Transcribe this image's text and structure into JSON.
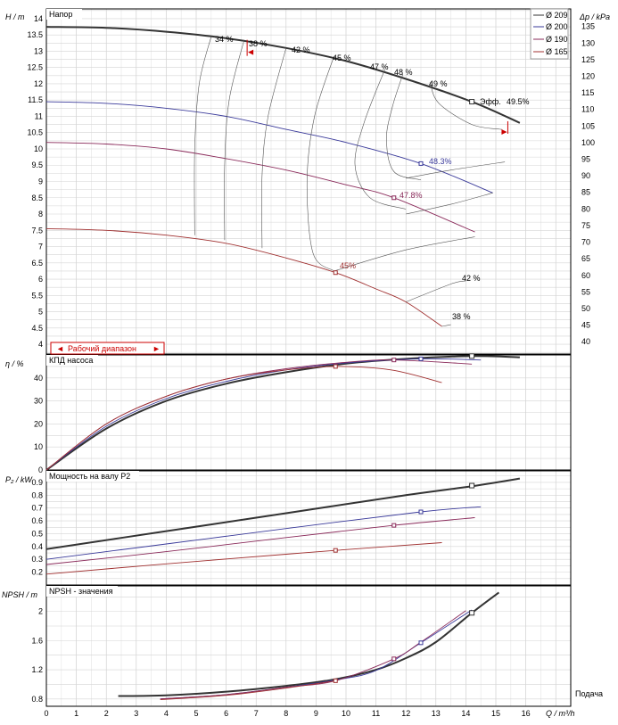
{
  "chart_data": [
    {
      "type": "line",
      "title": "Напор",
      "ylabel": "H / m",
      "ylabel2": "Δp / kPa",
      "xlim": [
        0,
        17.5
      ],
      "ylim": [
        3.7,
        14.3
      ],
      "yticks": [
        4,
        4.5,
        5,
        5.5,
        6,
        6.5,
        7,
        7.5,
        8,
        8.5,
        9,
        9.5,
        10,
        10.5,
        11,
        11.5,
        12,
        12.5,
        13,
        13.5,
        14
      ],
      "y2ticks": [
        40,
        45,
        50,
        55,
        60,
        65,
        70,
        75,
        80,
        85,
        90,
        95,
        100,
        105,
        110,
        115,
        120,
        125,
        130,
        135
      ],
      "legend": {
        "placement": "top-right",
        "entries": [
          "Ø 209",
          "Ø 200",
          "Ø 190",
          "Ø 165"
        ]
      },
      "series": [
        {
          "name": "Ø 209",
          "color": "#333333",
          "x": [
            0,
            2,
            4,
            6,
            8,
            10,
            12,
            14.2,
            15.8
          ],
          "y": [
            13.75,
            13.72,
            13.6,
            13.4,
            13.1,
            12.7,
            12.15,
            11.45,
            10.8
          ]
        },
        {
          "name": "Ø 200",
          "color": "#3a3a9a",
          "x": [
            0,
            2,
            4,
            6,
            8,
            10,
            12.5,
            14.9
          ],
          "y": [
            11.45,
            11.4,
            11.25,
            11.0,
            10.6,
            10.2,
            9.55,
            8.65
          ]
        },
        {
          "name": "Ø 190",
          "color": "#8a2a5a",
          "x": [
            0,
            2,
            4,
            6,
            8,
            10,
            11.6,
            14.3
          ],
          "y": [
            10.2,
            10.15,
            10.0,
            9.7,
            9.35,
            8.9,
            8.5,
            7.45
          ]
        },
        {
          "name": "Ø 165",
          "color": "#a03030",
          "x": [
            0,
            2,
            4,
            6,
            8,
            9.65,
            11,
            12,
            13.2
          ],
          "y": [
            7.55,
            7.5,
            7.35,
            7.1,
            6.65,
            6.2,
            5.7,
            5.3,
            4.55
          ]
        }
      ],
      "duty_points": [
        {
          "series": "Ø 209",
          "x": 14.2,
          "y": 11.45
        },
        {
          "series": "Ø 200",
          "x": 12.5,
          "y": 9.55
        },
        {
          "series": "Ø 190",
          "x": 11.6,
          "y": 8.5
        },
        {
          "series": "Ø 165",
          "x": 9.65,
          "y": 6.2
        }
      ],
      "efficiency_labels": [
        "34 %",
        "38 %",
        "42 %",
        "45 %",
        "47 %",
        "48 %",
        "49 %",
        "Эфф.",
        "49.5%",
        "48.3%",
        "47.8%",
        "45%",
        "42 %",
        "38 %"
      ],
      "operating_range_label": "Рабочий диапазон"
    },
    {
      "type": "line",
      "title": "КПД насоса",
      "ylabel": "η / %",
      "xlim": [
        0,
        17.5
      ],
      "ylim": [
        0,
        50
      ],
      "yticks": [
        0,
        10,
        20,
        30,
        40
      ],
      "series": [
        {
          "name": "Ø 209",
          "color": "#333333",
          "x": [
            0,
            2,
            4,
            6,
            8,
            10,
            12,
            14.2,
            15.8
          ],
          "y": [
            0,
            18,
            30,
            37.5,
            42.5,
            46.2,
            48.3,
            49.5,
            49.0
          ]
        },
        {
          "name": "Ø 200",
          "color": "#3a3a9a",
          "x": [
            0,
            2,
            4,
            6,
            8,
            10,
            12.5,
            14.5
          ],
          "y": [
            0,
            19,
            31,
            38.5,
            43.5,
            46.5,
            48.3,
            47.8
          ]
        },
        {
          "name": "Ø 190",
          "color": "#8a2a5a",
          "x": [
            0,
            2,
            4,
            6,
            8,
            10,
            11.6,
            14.2
          ],
          "y": [
            0,
            20,
            32,
            39.5,
            44,
            46.8,
            47.8,
            46.0
          ]
        },
        {
          "name": "Ø 165",
          "color": "#a03030",
          "x": [
            0,
            2,
            4,
            6,
            8,
            9.65,
            11.5,
            13.2
          ],
          "y": [
            0,
            20,
            32,
            39.5,
            43.5,
            45.0,
            43.5,
            38.0
          ]
        }
      ],
      "duty_points": [
        {
          "series": "Ø 209",
          "x": 14.2,
          "y": 49.5
        },
        {
          "series": "Ø 200",
          "x": 12.5,
          "y": 48.3
        },
        {
          "series": "Ø 190",
          "x": 11.6,
          "y": 47.8
        },
        {
          "series": "Ø 165",
          "x": 9.65,
          "y": 45.0
        }
      ]
    },
    {
      "type": "line",
      "title": "Мощность на валу P2",
      "ylabel": "P₂ / kW",
      "xlim": [
        0,
        17.5
      ],
      "ylim": [
        0.1,
        0.99
      ],
      "yticks": [
        0.2,
        0.3,
        0.4,
        0.5,
        0.6,
        0.7,
        0.8,
        0.9
      ],
      "series": [
        {
          "name": "Ø 209",
          "color": "#333333",
          "x": [
            0,
            4,
            8,
            12,
            14.2,
            15.8
          ],
          "y": [
            0.38,
            0.52,
            0.66,
            0.8,
            0.87,
            0.93
          ]
        },
        {
          "name": "Ø 200",
          "color": "#3a3a9a",
          "x": [
            0,
            4,
            8,
            12.5,
            14.5
          ],
          "y": [
            0.3,
            0.42,
            0.54,
            0.67,
            0.71
          ]
        },
        {
          "name": "Ø 190",
          "color": "#8a2a5a",
          "x": [
            0,
            4,
            8,
            11.6,
            14.3
          ],
          "y": [
            0.26,
            0.36,
            0.47,
            0.565,
            0.625
          ]
        },
        {
          "name": "Ø 165",
          "color": "#a03030",
          "x": [
            0,
            4,
            8,
            9.65,
            13.2
          ],
          "y": [
            0.185,
            0.265,
            0.34,
            0.37,
            0.43
          ]
        }
      ],
      "duty_points": [
        {
          "series": "Ø 209",
          "x": 14.2,
          "y": 0.875
        },
        {
          "series": "Ø 200",
          "x": 12.5,
          "y": 0.67
        },
        {
          "series": "Ø 190",
          "x": 11.6,
          "y": 0.565
        },
        {
          "series": "Ø 165",
          "x": 9.65,
          "y": 0.37
        }
      ]
    },
    {
      "type": "line",
      "title": "NPSH - значения",
      "ylabel": "NPSH / m",
      "xlabel": "Q / m³/h",
      "xlabel_right": "Подача",
      "xlim": [
        0,
        17.5
      ],
      "xticks": [
        0,
        1,
        2,
        3,
        4,
        5,
        6,
        7,
        8,
        9,
        10,
        11,
        12,
        13,
        14,
        15,
        16
      ],
      "ylim": [
        0.7,
        2.35
      ],
      "yticks": [
        0.8,
        1.2,
        1.6,
        2
      ],
      "series": [
        {
          "name": "Ø 209",
          "color": "#333333",
          "x": [
            2.4,
            4,
            6,
            8,
            9.65,
            11,
            12,
            13,
            14.2,
            15.1
          ],
          "y": [
            0.84,
            0.85,
            0.9,
            0.98,
            1.07,
            1.2,
            1.36,
            1.58,
            1.98,
            2.26
          ]
        },
        {
          "name": "Ø 200",
          "color": "#3a3a9a",
          "x": [
            3.8,
            6,
            8,
            9.65,
            11,
            12.5,
            14.2
          ],
          "y": [
            0.8,
            0.86,
            0.96,
            1.06,
            1.19,
            1.57,
            2.02
          ]
        },
        {
          "name": "Ø 190",
          "color": "#8a2a5a",
          "x": [
            3.8,
            6,
            8,
            9.65,
            11.6,
            12.5,
            14
          ],
          "y": [
            0.8,
            0.86,
            0.96,
            1.05,
            1.35,
            1.58,
            2.01
          ]
        },
        {
          "name": "Ø 165",
          "color": "#a03030",
          "x": [
            3.8,
            6,
            8,
            9.65
          ],
          "y": [
            0.79,
            0.85,
            0.95,
            1.05
          ]
        }
      ],
      "duty_points": [
        {
          "series": "Ø 209",
          "x": 14.2,
          "y": 1.98
        },
        {
          "series": "Ø 200",
          "x": 12.5,
          "y": 1.57
        },
        {
          "series": "Ø 190",
          "x": 11.6,
          "y": 1.35
        },
        {
          "series": "Ø 165",
          "x": 9.65,
          "y": 1.05
        }
      ]
    }
  ]
}
